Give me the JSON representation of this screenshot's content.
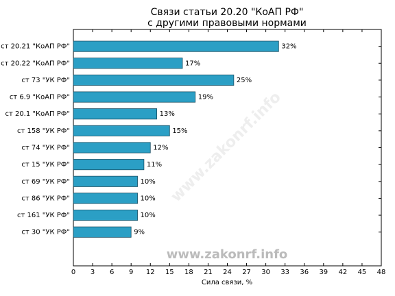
{
  "chart_data": {
    "type": "barh",
    "title": "Связи статьи 20.20 \"КоАП РФ\"",
    "subtitle": "с другими правовыми нормами",
    "xlabel": "Сила связи, %",
    "watermark": "www.zakonrf.info",
    "categories": [
      "ст 20.21 \"КоАП РФ\"",
      "ст 20.22 \"КоАП РФ\"",
      "ст 73 \"УК РФ\"",
      "ст 6.9 \"КоАП РФ\"",
      "ст 20.1 \"КоАП РФ\"",
      "ст 158 \"УК РФ\"",
      "ст 74 \"УК РФ\"",
      "ст 15 \"УК РФ\"",
      "ст 69 \"УК РФ\"",
      "ст 86 \"УК РФ\"",
      "ст 161 \"УК РФ\"",
      "ст 30 \"УК РФ\""
    ],
    "values": [
      32,
      17,
      25,
      19,
      13,
      15,
      12,
      11,
      10,
      10,
      10,
      9
    ],
    "value_labels": [
      "32%",
      "17%",
      "25%",
      "19%",
      "13%",
      "15%",
      "12%",
      "11%",
      "10%",
      "10%",
      "10%",
      "9%"
    ],
    "color": "#2b9fc5",
    "xlim": [
      0,
      48
    ],
    "xticks": [
      0,
      3,
      6,
      9,
      12,
      15,
      18,
      21,
      24,
      27,
      30,
      33,
      36,
      39,
      42,
      45,
      48
    ]
  }
}
